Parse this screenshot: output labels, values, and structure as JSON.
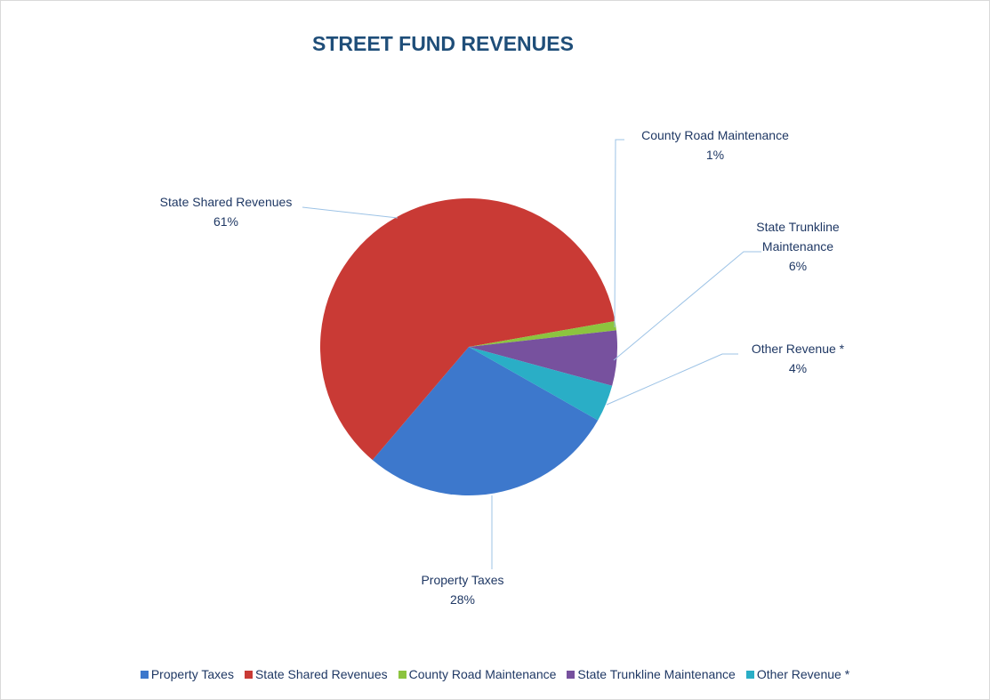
{
  "chart_data": {
    "type": "pie",
    "title": "STREET FUND REVENUES",
    "categories": [
      "Property Taxes",
      "State Shared Revenues",
      "County Road Maintenance",
      "State Trunkline Maintenance",
      "Other Revenue *"
    ],
    "values": [
      28,
      61,
      1,
      6,
      4
    ],
    "value_labels": [
      "28%",
      "61%",
      "1%",
      "6%",
      "4%"
    ],
    "colors": [
      "#3d78cc",
      "#c93a35",
      "#8cc43f",
      "#77519e",
      "#2aaec6"
    ],
    "legend": "bottom"
  }
}
